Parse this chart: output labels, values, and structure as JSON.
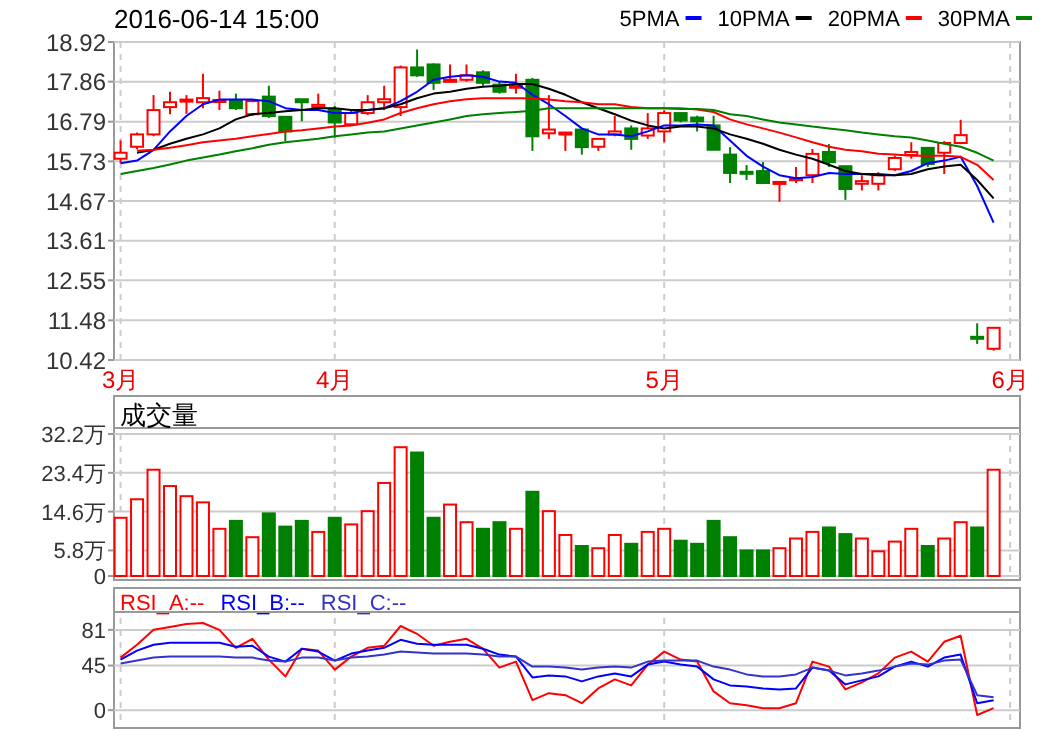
{
  "chart_data": [
    {
      "type": "candlestick",
      "title": "2016-06-14 15:00",
      "categories": [
        "3月",
        null,
        null,
        null,
        null,
        null,
        null,
        null,
        null,
        null,
        null,
        null,
        null,
        "4月",
        null,
        null,
        null,
        null,
        null,
        null,
        null,
        null,
        null,
        null,
        null,
        null,
        null,
        null,
        null,
        null,
        null,
        null,
        null,
        "5月",
        null,
        null,
        null,
        null,
        null,
        null,
        null,
        null,
        null,
        null,
        null,
        null,
        null,
        null,
        null,
        null,
        null,
        null,
        null,
        null,
        "6月"
      ],
      "ohlc": [
        [
          15.8,
          16.29,
          15.68,
          15.96
        ],
        [
          16.12,
          16.5,
          16.05,
          16.45
        ],
        [
          16.45,
          17.5,
          16.4,
          17.1
        ],
        [
          17.18,
          17.59,
          16.99,
          17.31
        ],
        [
          17.35,
          17.5,
          17.0,
          17.38
        ],
        [
          17.31,
          18.07,
          17.15,
          17.42
        ],
        [
          17.35,
          17.62,
          17.1,
          17.37
        ],
        [
          17.35,
          17.54,
          17.1,
          17.15
        ],
        [
          16.99,
          17.37,
          16.94,
          17.34
        ],
        [
          17.46,
          17.75,
          16.89,
          16.94
        ],
        [
          16.92,
          16.92,
          16.27,
          16.53
        ],
        [
          17.39,
          17.39,
          16.8,
          17.31
        ],
        [
          17.18,
          17.54,
          17.1,
          17.24
        ],
        [
          17.13,
          17.21,
          16.36,
          16.77
        ],
        [
          16.72,
          17.1,
          16.69,
          17.02
        ],
        [
          17.02,
          17.5,
          16.97,
          17.31
        ],
        [
          17.31,
          17.75,
          17.1,
          17.39
        ],
        [
          17.18,
          18.29,
          16.94,
          18.24
        ],
        [
          18.24,
          18.72,
          17.99,
          18.03
        ],
        [
          18.32,
          18.35,
          17.64,
          17.83
        ],
        [
          17.86,
          18.32,
          17.83,
          17.91
        ],
        [
          17.91,
          18.32,
          17.86,
          18.03
        ],
        [
          18.11,
          18.16,
          17.75,
          17.83
        ],
        [
          17.78,
          17.86,
          17.54,
          17.59
        ],
        [
          17.7,
          18.07,
          17.54,
          17.75
        ],
        [
          17.91,
          17.96,
          16.01,
          16.4
        ],
        [
          16.48,
          17.5,
          16.33,
          16.58
        ],
        [
          16.48,
          16.5,
          16.01,
          16.5
        ],
        [
          16.58,
          16.61,
          15.91,
          16.11
        ],
        [
          16.12,
          16.35,
          16.01,
          16.33
        ],
        [
          16.45,
          16.94,
          16.4,
          16.53
        ],
        [
          16.61,
          16.69,
          16.04,
          16.33
        ],
        [
          16.42,
          17.02,
          16.33,
          16.61
        ],
        [
          16.53,
          17.1,
          16.24,
          17.02
        ],
        [
          17.02,
          17.02,
          16.77,
          16.82
        ],
        [
          16.9,
          16.95,
          16.53,
          16.8
        ],
        [
          16.69,
          16.95,
          16.04,
          16.04
        ],
        [
          15.91,
          16.11,
          15.15,
          15.42
        ],
        [
          15.45,
          15.63,
          15.23,
          15.42
        ],
        [
          15.47,
          15.71,
          15.15,
          15.15
        ],
        [
          15.13,
          15.2,
          14.65,
          15.18
        ],
        [
          15.23,
          15.58,
          15.15,
          15.28
        ],
        [
          15.36,
          16.06,
          15.15,
          15.93
        ],
        [
          15.98,
          16.19,
          15.58,
          15.71
        ],
        [
          15.6,
          15.6,
          14.7,
          14.99
        ],
        [
          15.13,
          15.36,
          14.95,
          15.2
        ],
        [
          15.13,
          15.44,
          14.95,
          15.36
        ],
        [
          15.52,
          15.88,
          15.47,
          15.82
        ],
        [
          15.9,
          16.24,
          15.8,
          15.98
        ],
        [
          16.09,
          16.09,
          15.58,
          15.66
        ],
        [
          15.96,
          16.27,
          15.39,
          16.22
        ],
        [
          16.22,
          16.84,
          16.19,
          16.43
        ],
        [
          11.04,
          11.4,
          10.85,
          11.0
        ],
        [
          10.72,
          11.28,
          10.67,
          11.28
        ],
        null
      ],
      "colors": [
        "#ff0000",
        "#ff0000",
        "#ff0000",
        "#ff0000",
        "#ff0000",
        "#ff0000",
        "#ff0000",
        "#008000",
        "#ff0000",
        "#008000",
        "#008000",
        "#008000",
        "#ff0000",
        "#008000",
        "#ff0000",
        "#ff0000",
        "#ff0000",
        "#ff0000",
        "#008000",
        "#008000",
        "#ff0000",
        "#ff0000",
        "#008000",
        "#008000",
        "#ff0000",
        "#008000",
        "#ff0000",
        "#ff0000",
        "#008000",
        "#ff0000",
        "#ff0000",
        "#008000",
        "#ff0000",
        "#ff0000",
        "#008000",
        "#008000",
        "#008000",
        "#008000",
        "#008000",
        "#008000",
        "#ff0000",
        "#ff0000",
        "#ff0000",
        "#008000",
        "#008000",
        "#ff0000",
        "#ff0000",
        "#ff0000",
        "#ff0000",
        "#008000",
        "#ff0000",
        "#ff0000",
        "#008000",
        "#ff0000",
        null
      ],
      "series": [
        {
          "name": "5PMA",
          "type": "line",
          "color": "#0000ff",
          "values": [
            15.68,
            15.75,
            16.04,
            16.53,
            16.94,
            17.26,
            17.38,
            17.38,
            17.38,
            17.34,
            17.15,
            17.1,
            17.1,
            17.02,
            17.02,
            17.1,
            17.15,
            17.34,
            17.59,
            17.91,
            17.99,
            18.03,
            17.99,
            17.86,
            17.83,
            17.51,
            17.26,
            16.94,
            16.61,
            16.45,
            16.45,
            16.4,
            16.53,
            16.69,
            16.69,
            16.72,
            16.69,
            16.29,
            15.88,
            15.59,
            15.36,
            15.28,
            15.31,
            15.42,
            15.39,
            15.39,
            15.39,
            15.36,
            15.47,
            15.68,
            15.75,
            15.85,
            15.07,
            14.09,
            null
          ]
        },
        {
          "name": "10PMA",
          "type": "line",
          "color": "#000000",
          "values": [
            null,
            15.96,
            16.04,
            16.2,
            16.33,
            16.45,
            16.61,
            16.85,
            16.99,
            17.02,
            17.07,
            17.1,
            17.15,
            17.15,
            17.1,
            17.1,
            17.15,
            17.26,
            17.42,
            17.54,
            17.59,
            17.67,
            17.72,
            17.75,
            17.8,
            17.8,
            17.67,
            17.51,
            17.31,
            17.15,
            16.99,
            16.82,
            16.69,
            16.61,
            16.66,
            16.66,
            16.61,
            16.45,
            16.33,
            16.2,
            16.04,
            15.91,
            15.8,
            15.64,
            15.47,
            15.39,
            15.36,
            15.36,
            15.39,
            15.52,
            15.59,
            15.64,
            15.23,
            14.74,
            null
          ]
        },
        {
          "name": "20PMA",
          "type": "line",
          "color": "#ff0000",
          "values": [
            null,
            16.01,
            16.04,
            16.09,
            16.16,
            16.24,
            16.29,
            16.33,
            16.4,
            16.46,
            16.53,
            16.56,
            16.61,
            16.66,
            16.69,
            16.76,
            16.85,
            17.02,
            17.15,
            17.26,
            17.34,
            17.39,
            17.42,
            17.42,
            17.42,
            17.42,
            17.38,
            17.34,
            17.31,
            17.26,
            17.26,
            17.18,
            17.15,
            17.15,
            17.15,
            17.12,
            17.05,
            16.85,
            16.72,
            16.61,
            16.5,
            16.37,
            16.24,
            16.12,
            16.04,
            16.0,
            15.93,
            15.91,
            15.88,
            15.88,
            15.88,
            15.85,
            15.64,
            15.23,
            null
          ]
        },
        {
          "name": "30PMA",
          "type": "line",
          "color": "#008000",
          "values": [
            15.39,
            15.47,
            15.55,
            15.65,
            15.75,
            15.83,
            15.91,
            16.0,
            16.08,
            16.17,
            16.24,
            16.29,
            16.33,
            16.4,
            16.45,
            16.5,
            16.53,
            16.61,
            16.69,
            16.77,
            16.85,
            16.94,
            16.99,
            17.02,
            17.05,
            17.08,
            17.15,
            17.15,
            17.15,
            17.15,
            17.15,
            17.15,
            17.15,
            17.15,
            17.13,
            17.13,
            17.1,
            16.99,
            16.94,
            16.85,
            16.77,
            16.72,
            16.66,
            16.61,
            16.56,
            16.5,
            16.45,
            16.4,
            16.37,
            16.29,
            16.2,
            16.12,
            15.96,
            15.75,
            null
          ]
        }
      ],
      "ylim": [
        10.42,
        18.92
      ],
      "yticks": [
        10.42,
        11.48,
        12.55,
        13.61,
        14.67,
        15.73,
        16.79,
        17.86,
        18.92
      ],
      "grid": true,
      "legend": "top right"
    },
    {
      "type": "bar",
      "title": "成交量",
      "categories": [
        null,
        null,
        null,
        null,
        null,
        null,
        null,
        null,
        null,
        null,
        null,
        null,
        null,
        null,
        null,
        null,
        null,
        null,
        null,
        null,
        null,
        null,
        null,
        null,
        null,
        null,
        null,
        null,
        null,
        null,
        null,
        null,
        null,
        null,
        null,
        null,
        null,
        null,
        null,
        null,
        null,
        null,
        null,
        null,
        null,
        null,
        null,
        null,
        null,
        null,
        null,
        null,
        null,
        null,
        null
      ],
      "values": [
        13.2,
        17.4,
        24.1,
        20.4,
        18.1,
        16.7,
        10.7,
        12.5,
        8.8,
        14.2,
        11.2,
        12.5,
        10.0,
        13.2,
        11.7,
        14.7,
        21.1,
        29.2,
        28.0,
        13.2,
        16.2,
        12.2,
        10.7,
        12.2,
        10.7,
        19.1,
        14.7,
        9.3,
        6.8,
        6.3,
        9.3,
        7.3,
        10.0,
        10.7,
        8.0,
        7.3,
        12.5,
        8.8,
        5.8,
        5.8,
        6.3,
        8.5,
        10.0,
        11.0,
        9.5,
        8.5,
        5.6,
        7.8,
        10.7,
        6.8,
        8.5,
        12.2,
        11.0,
        24.1,
        null
      ],
      "colors": [
        "#ff0000",
        "#ff0000",
        "#ff0000",
        "#ff0000",
        "#ff0000",
        "#ff0000",
        "#ff0000",
        "#008000",
        "#ff0000",
        "#008000",
        "#008000",
        "#008000",
        "#ff0000",
        "#008000",
        "#ff0000",
        "#ff0000",
        "#ff0000",
        "#ff0000",
        "#008000",
        "#008000",
        "#ff0000",
        "#ff0000",
        "#008000",
        "#008000",
        "#ff0000",
        "#008000",
        "#ff0000",
        "#ff0000",
        "#008000",
        "#ff0000",
        "#ff0000",
        "#008000",
        "#ff0000",
        "#ff0000",
        "#008000",
        "#008000",
        "#008000",
        "#008000",
        "#008000",
        "#008000",
        "#ff0000",
        "#ff0000",
        "#ff0000",
        "#008000",
        "#008000",
        "#ff0000",
        "#ff0000",
        "#ff0000",
        "#ff0000",
        "#008000",
        "#ff0000",
        "#ff0000",
        "#008000",
        "#ff0000",
        null
      ],
      "ylim": [
        0,
        32.2
      ],
      "yticks": [
        0,
        {
          "value": 5.8,
          "label": "5.8万"
        },
        {
          "value": 14.6,
          "label": "14.6万"
        },
        {
          "value": 23.4,
          "label": "23.4万"
        },
        {
          "value": 32.2,
          "label": "32.2万"
        }
      ],
      "grid": true,
      "tick_labels": "y"
    },
    {
      "type": "line",
      "categories": [
        null,
        null,
        null,
        null,
        null,
        null,
        null,
        null,
        null,
        null,
        null,
        null,
        null,
        null,
        null,
        null,
        null,
        null,
        null,
        null,
        null,
        null,
        null,
        null,
        null,
        null,
        null,
        null,
        null,
        null,
        null,
        null,
        null,
        null,
        null,
        null,
        null,
        null,
        null,
        null,
        null,
        null,
        null,
        null,
        null,
        null,
        null,
        null,
        null,
        null,
        null,
        null,
        null,
        null,
        null
      ],
      "series": [
        {
          "name": "RSI_A:--",
          "color": "#ff0000",
          "values": [
            53,
            66,
            81,
            84,
            87,
            88,
            81,
            63,
            72,
            51,
            34,
            62,
            60,
            41,
            54,
            63,
            65,
            85,
            77,
            65,
            69,
            72,
            62,
            43,
            49,
            10,
            17,
            15,
            7,
            22,
            31,
            25,
            46,
            59,
            51,
            49,
            19,
            7,
            5,
            2,
            2,
            7,
            49,
            44,
            21,
            28,
            37,
            53,
            59,
            49,
            69,
            75,
            -5,
            2,
            null
          ]
        },
        {
          "name": "RSI_B:--",
          "color": "#0000ff",
          "values": [
            51,
            60,
            66,
            68,
            68,
            68,
            68,
            64,
            65,
            54,
            49,
            62,
            59,
            50,
            57,
            60,
            63,
            71,
            67,
            66,
            66,
            66,
            62,
            56,
            54,
            33,
            35,
            34,
            29,
            34,
            37,
            34,
            46,
            49,
            46,
            44,
            31,
            25,
            24,
            22,
            21,
            22,
            43,
            40,
            26,
            30,
            34,
            44,
            49,
            44,
            53,
            56,
            7,
            10,
            null
          ]
        },
        {
          "name": "RSI_C:--",
          "color": "#3333cc",
          "values": [
            47,
            50,
            53,
            54,
            54,
            54,
            54,
            53,
            53,
            50,
            49,
            53,
            53,
            50,
            53,
            54,
            56,
            59,
            58,
            57,
            57,
            57,
            56,
            54,
            54,
            44,
            44,
            43,
            41,
            43,
            44,
            43,
            49,
            50,
            50,
            50,
            44,
            41,
            36,
            34,
            34,
            36,
            43,
            40,
            35,
            37,
            40,
            44,
            47,
            46,
            50,
            51,
            15,
            13,
            null
          ]
        }
      ],
      "ylim": [
        -14,
        93
      ],
      "yticks": [
        0,
        45,
        81
      ],
      "grid": true,
      "legend": "top left",
      "tick_labels": "y"
    }
  ]
}
